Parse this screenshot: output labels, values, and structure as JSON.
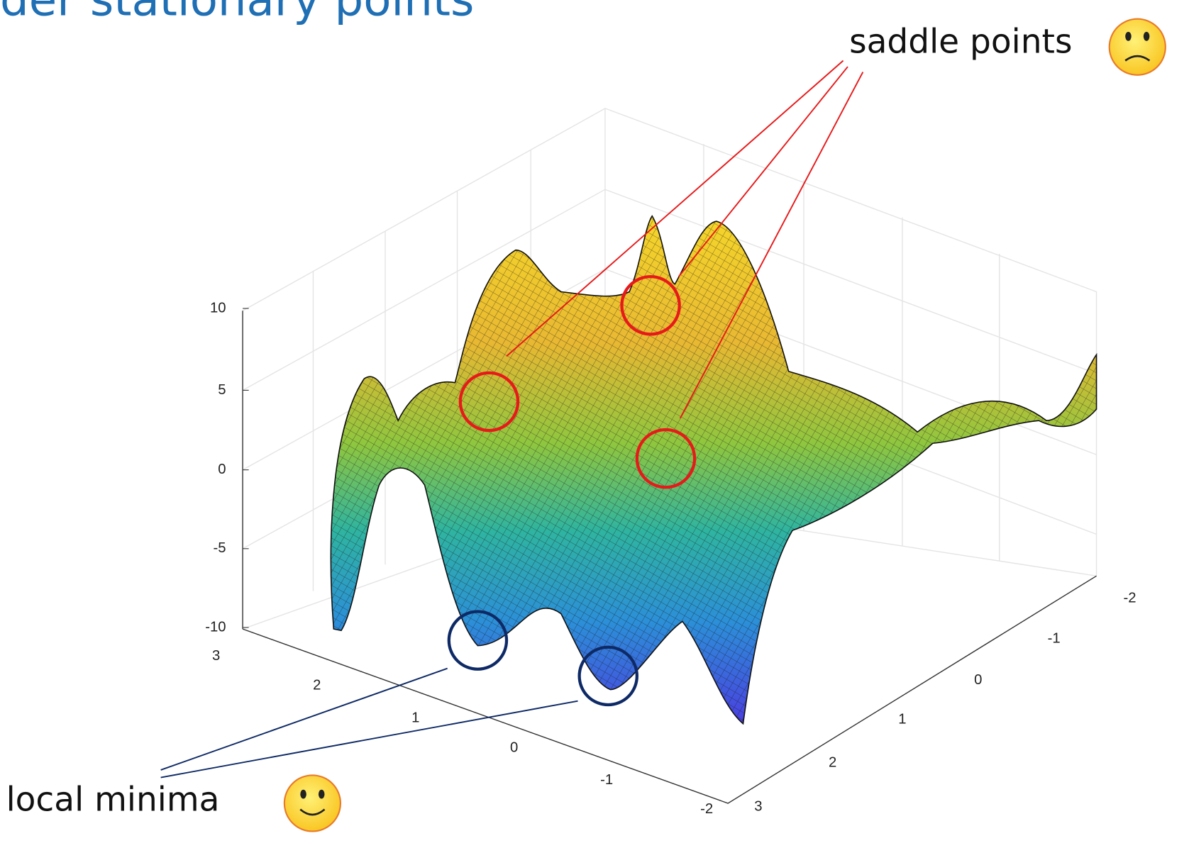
{
  "title": "der stationary points",
  "annotations": {
    "saddle": "saddle points",
    "minima": "local minima"
  },
  "axes": {
    "z_ticks": [
      10,
      5,
      0,
      -5,
      -10
    ],
    "x_ticks": [
      3,
      2,
      1,
      0,
      -1,
      -2
    ],
    "y_ticks": [
      -2,
      -1,
      0,
      1,
      2,
      3
    ]
  }
}
